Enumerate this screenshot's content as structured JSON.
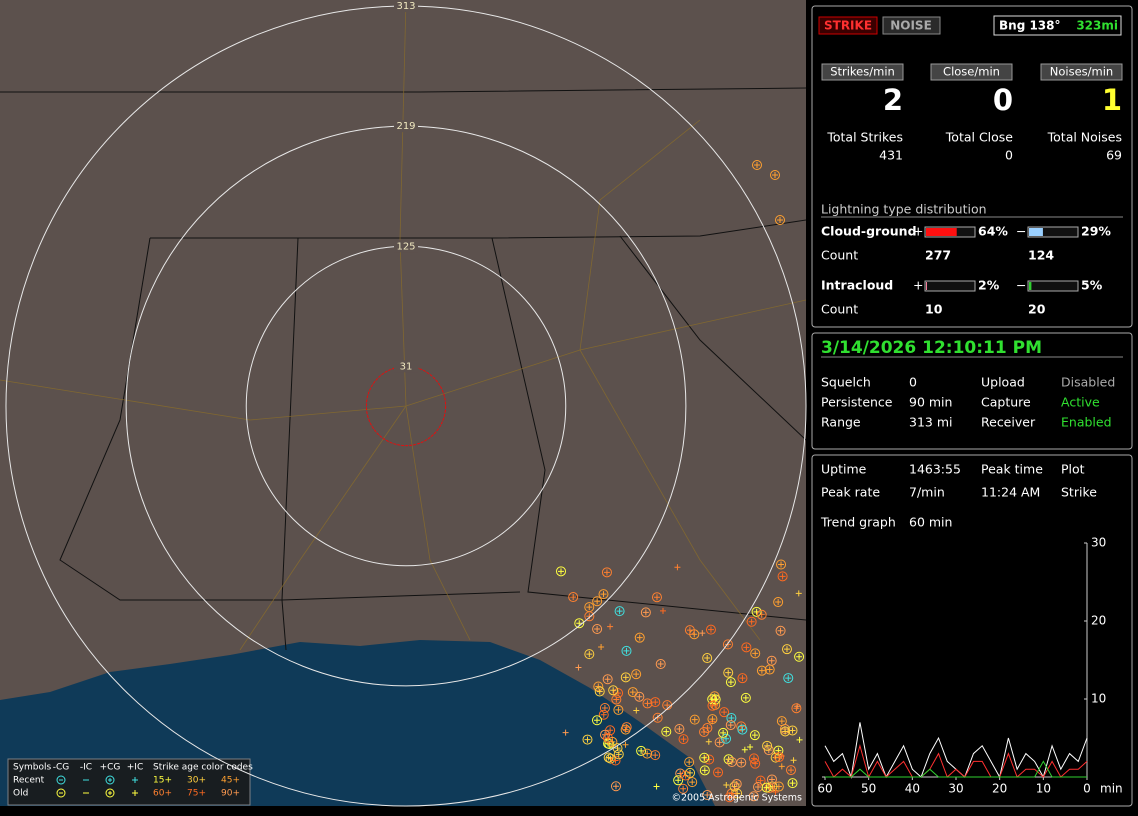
{
  "map": {
    "rings": [
      313,
      219,
      125,
      31
    ],
    "legend": {
      "symbols": "Symbols",
      "columns": [
        "-CG",
        "-IC",
        "+CG",
        "+IC"
      ],
      "age_title": "Strike age color codes",
      "rows": [
        "Recent",
        "Old"
      ],
      "ages": [
        "15+",
        "30+",
        "45+",
        "60+",
        "75+",
        "90+"
      ]
    },
    "copyright": "©2005 Astrogenic Systems"
  },
  "status": {
    "strike": "STRIKE",
    "noise": "NOISE",
    "bearing": "Bng 138°",
    "distance": "323mi",
    "rates": [
      {
        "label": "Strikes/min",
        "value": 2
      },
      {
        "label": "Close/min",
        "value": 0
      },
      {
        "label": "Noises/min",
        "value": 1
      }
    ],
    "totals": [
      {
        "label": "Total Strikes",
        "value": 431
      },
      {
        "label": "Total Close",
        "value": 0
      },
      {
        "label": "Total Noises",
        "value": 69
      }
    ]
  },
  "distribution": {
    "title": "Lightning type distribution",
    "rows": [
      {
        "name": "Cloud-ground",
        "pos_sign": "+",
        "pos": {
          "value": 64,
          "label": "64%"
        },
        "neg_sign": "−",
        "neg": {
          "value": 29,
          "label": "29%"
        },
        "count_label": "Count",
        "pos_count": 277,
        "neg_count": 124
      },
      {
        "name": "Intracloud",
        "pos_sign": "+",
        "pos": {
          "value": 2,
          "label": "2%"
        },
        "neg_sign": "−",
        "neg": {
          "value": 5,
          "label": "5%"
        },
        "count_label": "Count",
        "pos_count": 10,
        "neg_count": 20
      }
    ]
  },
  "clock": "3/14/2026 12:10:11 PM",
  "settings": [
    {
      "label": "Squelch",
      "value": "0"
    },
    {
      "label": "Persistence",
      "value": "90 min"
    },
    {
      "label": "Range",
      "value": "313 mi"
    },
    {
      "label": "Upload",
      "value": "Disabled"
    },
    {
      "label": "Capture",
      "value": "Active"
    },
    {
      "label": "Receiver",
      "value": "Enabled"
    }
  ],
  "stats": [
    {
      "label": "Uptime",
      "value": "1463:55"
    },
    {
      "label": "Peak rate",
      "value": "7/min"
    },
    {
      "label": "Trend graph",
      "value": "60 min"
    },
    {
      "label": "Peak time",
      "value": "11:24 AM"
    },
    {
      "label": "Plot",
      "value": "Strike"
    }
  ],
  "chart_data": {
    "type": "line",
    "x": [
      60,
      58,
      56,
      54,
      52,
      50,
      48,
      46,
      44,
      42,
      40,
      38,
      36,
      34,
      32,
      30,
      28,
      26,
      24,
      22,
      20,
      18,
      16,
      14,
      12,
      10,
      8,
      6,
      4,
      2,
      0
    ],
    "xlim": [
      60,
      0
    ],
    "ylim": [
      0,
      30
    ],
    "yticks": [
      10,
      20,
      30
    ],
    "xticks": [
      60,
      50,
      40,
      30,
      20,
      10,
      0
    ],
    "x_unit": "min",
    "series": [
      {
        "color": "#ffffff",
        "values": [
          4,
          2,
          3,
          0,
          7,
          1,
          3,
          0,
          2,
          4,
          1,
          0,
          3,
          5,
          2,
          1,
          0,
          3,
          4,
          2,
          0,
          5,
          1,
          3,
          2,
          0,
          4,
          1,
          3,
          2,
          5
        ]
      },
      {
        "color": "#ff3030",
        "values": [
          2,
          0,
          1,
          0,
          4,
          0,
          2,
          0,
          1,
          2,
          0,
          0,
          1,
          3,
          0,
          1,
          0,
          2,
          2,
          0,
          0,
          3,
          0,
          1,
          1,
          0,
          2,
          0,
          1,
          1,
          2
        ]
      },
      {
        "color": "#30d030",
        "values": [
          0,
          0,
          0,
          0,
          1,
          0,
          0,
          0,
          0,
          0,
          0,
          0,
          1,
          0,
          0,
          0,
          0,
          0,
          0,
          0,
          0,
          0,
          0,
          0,
          0,
          2,
          0,
          0,
          0,
          0,
          0
        ]
      }
    ]
  }
}
